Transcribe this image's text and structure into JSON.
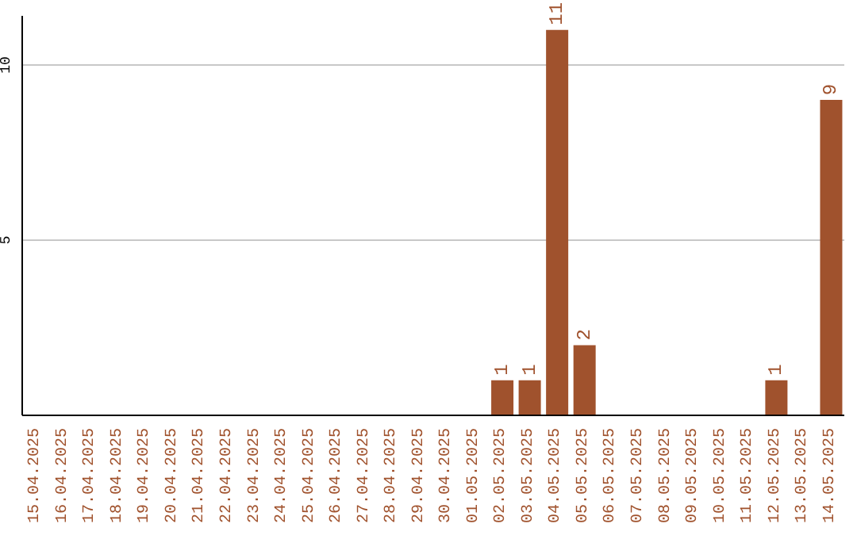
{
  "chart_data": {
    "type": "bar",
    "categories": [
      "15.04.2025",
      "16.04.2025",
      "17.04.2025",
      "18.04.2025",
      "19.04.2025",
      "20.04.2025",
      "21.04.2025",
      "22.04.2025",
      "23.04.2025",
      "24.04.2025",
      "25.04.2025",
      "26.04.2025",
      "27.04.2025",
      "28.04.2025",
      "29.04.2025",
      "30.04.2025",
      "01.05.2025",
      "02.05.2025",
      "03.05.2025",
      "04.05.2025",
      "05.05.2025",
      "06.05.2025",
      "07.05.2025",
      "08.05.2025",
      "09.05.2025",
      "10.05.2025",
      "11.05.2025",
      "12.05.2025",
      "13.05.2025",
      "14.05.2025"
    ],
    "values": [
      0,
      0,
      0,
      0,
      0,
      0,
      0,
      0,
      0,
      0,
      0,
      0,
      0,
      0,
      0,
      0,
      0,
      1,
      1,
      11,
      2,
      0,
      0,
      0,
      0,
      0,
      0,
      1,
      0,
      9
    ],
    "value_labels": [
      null,
      null,
      null,
      null,
      null,
      null,
      null,
      null,
      null,
      null,
      null,
      null,
      null,
      null,
      null,
      null,
      null,
      "1",
      "1",
      "11",
      "2",
      null,
      null,
      null,
      null,
      null,
      null,
      "1",
      null,
      "9"
    ],
    "color": "#a0522d",
    "ylim": [
      0,
      11.4
    ],
    "yticks": [
      5,
      10
    ],
    "grid": "y"
  }
}
